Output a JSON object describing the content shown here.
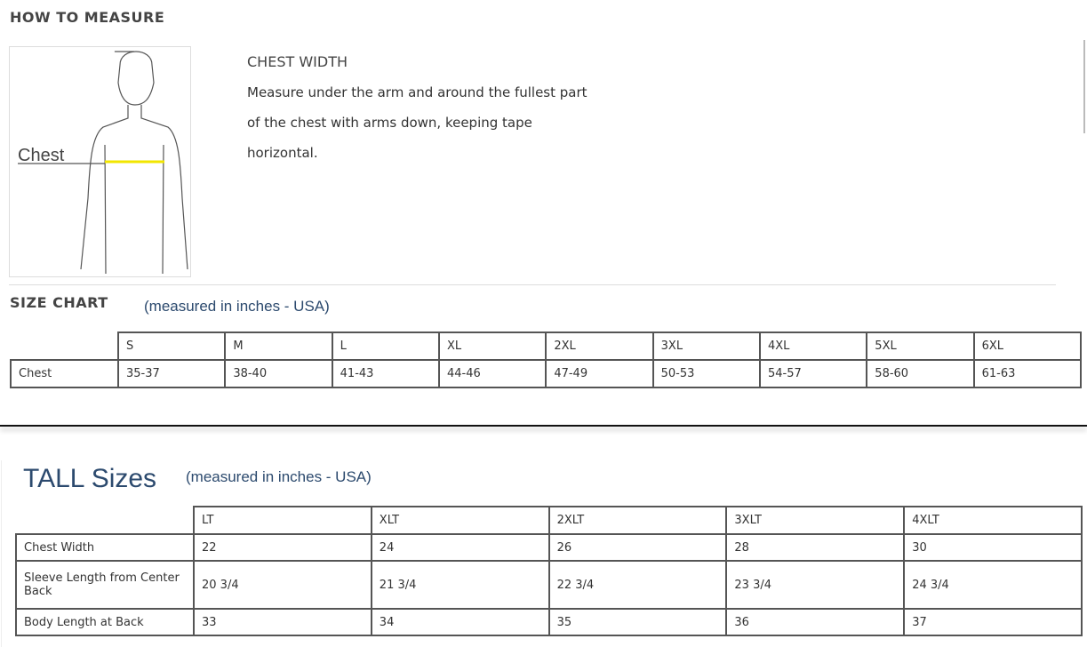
{
  "how_to_measure": {
    "title": "HOW TO MEASURE",
    "figure_label": "Chest",
    "heading": "CHEST WIDTH",
    "lines": [
      "Measure under the arm and around the fullest part",
      "of the chest with arms down, keeping tape",
      "horizontal."
    ]
  },
  "size_chart": {
    "title": "SIZE CHART",
    "subtitle": "(measured in inches - USA)",
    "headers": [
      "S",
      "M",
      "L",
      "XL",
      "2XL",
      "3XL",
      "4XL",
      "5XL",
      "6XL"
    ],
    "rows": [
      {
        "label": "Chest",
        "values": [
          "35-37",
          "38-40",
          "41-43",
          "44-46",
          "47-49",
          "50-53",
          "54-57",
          "58-60",
          "61-63"
        ]
      }
    ]
  },
  "tall": {
    "title": "TALL Sizes",
    "subtitle": "(measured in inches - USA)",
    "headers": [
      "LT",
      "XLT",
      "2XLT",
      "3XLT",
      "4XLT"
    ],
    "rows": [
      {
        "label": "Chest Width",
        "values": [
          "22",
          "24",
          "26",
          "28",
          "30"
        ]
      },
      {
        "label": "Sleeve Length from Center Back",
        "values": [
          "20 3/4",
          "21 3/4",
          "22 3/4",
          "23 3/4",
          "24 3/4"
        ]
      },
      {
        "label": "Body Length at Back",
        "values": [
          "33",
          "34",
          "35",
          "36",
          "37"
        ]
      }
    ]
  },
  "colors": {
    "title_blue": "#2c4a6e",
    "tape": "#f2e600"
  }
}
